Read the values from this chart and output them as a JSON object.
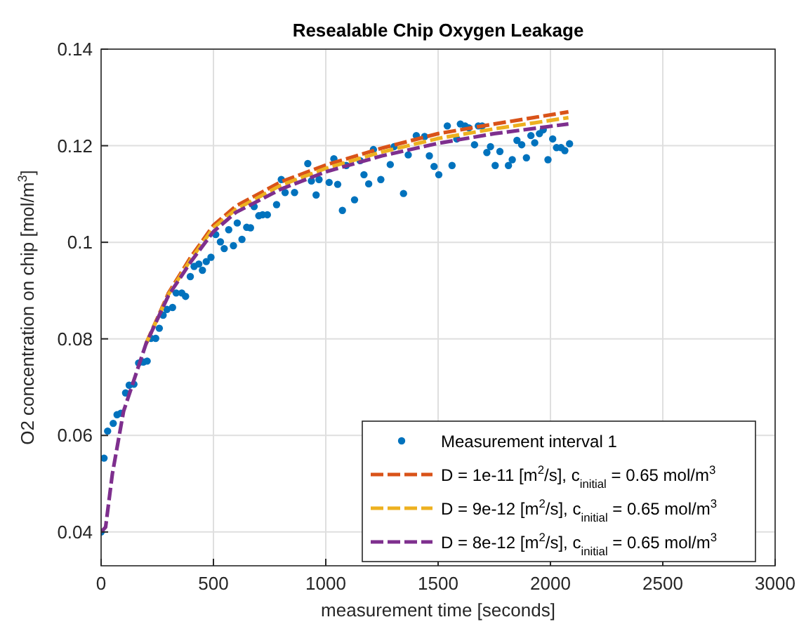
{
  "chart_data": {
    "type": "scatter",
    "title": "Resealable Chip Oxygen Leakage",
    "xlabel": "measurement time [seconds]",
    "ylabel": "O2 concentration on chip [mol/m$^{3}$]",
    "xlim": [
      0,
      3000
    ],
    "xticks": [
      0,
      500,
      1000,
      1500,
      2000,
      2500,
      3000
    ],
    "ylim": [
      0.033,
      0.14
    ],
    "yticks": [
      0.04,
      0.06,
      0.08,
      0.1,
      0.12,
      0.14
    ],
    "grid": true,
    "legend": "bottom right",
    "series": [
      {
        "name": "Measurement interval 1",
        "type": "scatter",
        "marker": "circle",
        "color": "#0072bd",
        "x": [
          0,
          13,
          29,
          54,
          71,
          88,
          109,
          125,
          146,
          167,
          188,
          205,
          222,
          243,
          259,
          276,
          293,
          318,
          334,
          359,
          376,
          397,
          414,
          435,
          451,
          468,
          489,
          510,
          531,
          548,
          568,
          589,
          606,
          627,
          648,
          665,
          681,
          702,
          719,
          740,
          781,
          802,
          819,
          861,
          920,
          936,
          957,
          970,
          1015,
          1036,
          1053,
          1074,
          1091,
          1128,
          1153,
          1170,
          1191,
          1212,
          1245,
          1287,
          1304,
          1346,
          1367,
          1403,
          1440,
          1461,
          1482,
          1503,
          1541,
          1562,
          1583,
          1599,
          1620,
          1637,
          1662,
          1679,
          1696,
          1717,
          1733,
          1754,
          1775,
          1813,
          1830,
          1851,
          1872,
          1893,
          1913,
          1930,
          1951,
          1968,
          1989,
          2010,
          2027,
          2047,
          2064,
          2085
        ],
        "values": [
          0.04,
          0.0553,
          0.0609,
          0.0625,
          0.0643,
          0.0646,
          0.0688,
          0.0704,
          0.0706,
          0.075,
          0.0752,
          0.0754,
          0.0801,
          0.0801,
          0.0822,
          0.0849,
          0.0861,
          0.0865,
          0.0895,
          0.0895,
          0.0888,
          0.0929,
          0.095,
          0.0955,
          0.0942,
          0.096,
          0.0969,
          0.1016,
          0.1001,
          0.0987,
          0.1026,
          0.0993,
          0.104,
          0.1006,
          0.1031,
          0.103,
          0.1074,
          0.1055,
          0.1057,
          0.1057,
          0.1078,
          0.113,
          0.1103,
          0.1103,
          0.1163,
          0.1127,
          0.1098,
          0.113,
          0.1124,
          0.1173,
          0.112,
          0.1066,
          0.1159,
          0.1088,
          0.1169,
          0.114,
          0.1121,
          0.1192,
          0.113,
          0.1161,
          0.1198,
          0.1101,
          0.1181,
          0.1221,
          0.1219,
          0.1179,
          0.1157,
          0.114,
          0.1241,
          0.1159,
          0.1214,
          0.1245,
          0.1241,
          0.1237,
          0.1202,
          0.1241,
          0.1241,
          0.1186,
          0.1198,
          0.1159,
          0.1188,
          0.1159,
          0.1171,
          0.1211,
          0.1202,
          0.1175,
          0.1221,
          0.1206,
          0.1225,
          0.1233,
          0.1171,
          0.1214,
          0.1196,
          0.1196,
          0.119,
          0.1204
        ]
      },
      {
        "name": "D = 1e-11 [m$^{2}$/s], c$_{initial}$ = 0.65 mol/m$^{3}$",
        "type": "line",
        "line_style": "dashed",
        "color": "#d95319",
        "x": [
          200,
          300,
          400,
          500,
          600,
          800,
          1000,
          1250,
          1500,
          1750,
          2080
        ],
        "values": [
          0.079,
          0.0895,
          0.097,
          0.1035,
          0.1075,
          0.1125,
          0.116,
          0.1195,
          0.1225,
          0.1245,
          0.127
        ]
      },
      {
        "name": "D = 9e-12 [m$^{2}$/s], c$_{initial}$ = 0.65 mol/m$^{3}$",
        "type": "line",
        "line_style": "dashed",
        "color": "#edb120",
        "x": [
          200,
          300,
          400,
          500,
          600,
          800,
          1000,
          1250,
          1500,
          1750,
          2080
        ],
        "values": [
          0.079,
          0.0892,
          0.0965,
          0.103,
          0.1068,
          0.1118,
          0.1153,
          0.1187,
          0.1215,
          0.1235,
          0.1258
        ]
      },
      {
        "name": "D = 8e-12 [m$^{2}$/s], c$_{initial}$ = 0.65 mol/m$^{3}$",
        "type": "line",
        "line_style": "dashed",
        "color": "#7e2f8e",
        "x": [
          0,
          20,
          50,
          100,
          200,
          300,
          400,
          500,
          600,
          800,
          1000,
          1250,
          1500,
          1750,
          2080
        ],
        "values": [
          0.04,
          0.041,
          0.052,
          0.065,
          0.079,
          0.089,
          0.096,
          0.1022,
          0.1062,
          0.111,
          0.1146,
          0.1179,
          0.1205,
          0.1225,
          0.1245
        ]
      }
    ]
  }
}
